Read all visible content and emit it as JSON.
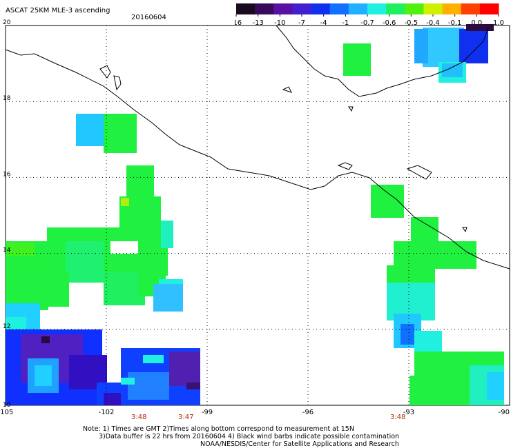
{
  "header": {
    "title": "ASCAT 25KM MLE-3 ascending",
    "date": "20160604"
  },
  "colorbar": {
    "ticks": [
      "-16",
      "-13",
      "-10",
      "-7",
      "-4",
      "-1",
      "-0.7",
      "-0.6",
      "-0.5",
      "-0.4",
      "-0.1",
      "0.0",
      "1.0"
    ],
    "colors": [
      "#1a0a1e",
      "#3a0a5a",
      "#5a10a0",
      "#4020d0",
      "#1030f0",
      "#1070ff",
      "#20b0ff",
      "#20f0e0",
      "#20f060",
      "#50f010",
      "#d0f000",
      "#ffb000",
      "#ff4000",
      "#ff0000"
    ]
  },
  "map": {
    "lat_labels": [
      "20",
      "18",
      "16",
      "14",
      "12",
      "10"
    ],
    "lon_labels": [
      "-105",
      "-102",
      "-99",
      "-96",
      "-93",
      "-90"
    ],
    "lat_range": [
      10,
      20
    ],
    "lon_range": [
      -105,
      -90
    ]
  },
  "times": {
    "t1": "3:48",
    "t2": "3:47",
    "t3": "3:48"
  },
  "notes": {
    "line1": "Note: 1) Times are GMT 2)Times along bottom correspond to measurement at 15N",
    "line2": "3)Data buffer is 22 hrs from 20160604 4) Black wind barbs indicate possible contamination",
    "line3": "NOAA/NESDIS/Center for Satellite Applications and Research"
  },
  "colors": {
    "green": "#20f040",
    "cyan": "#20f0d0",
    "sky": "#20c0ff",
    "blue": "#1050ff",
    "violet": "#5020c0",
    "time_red": "#b03010"
  }
}
